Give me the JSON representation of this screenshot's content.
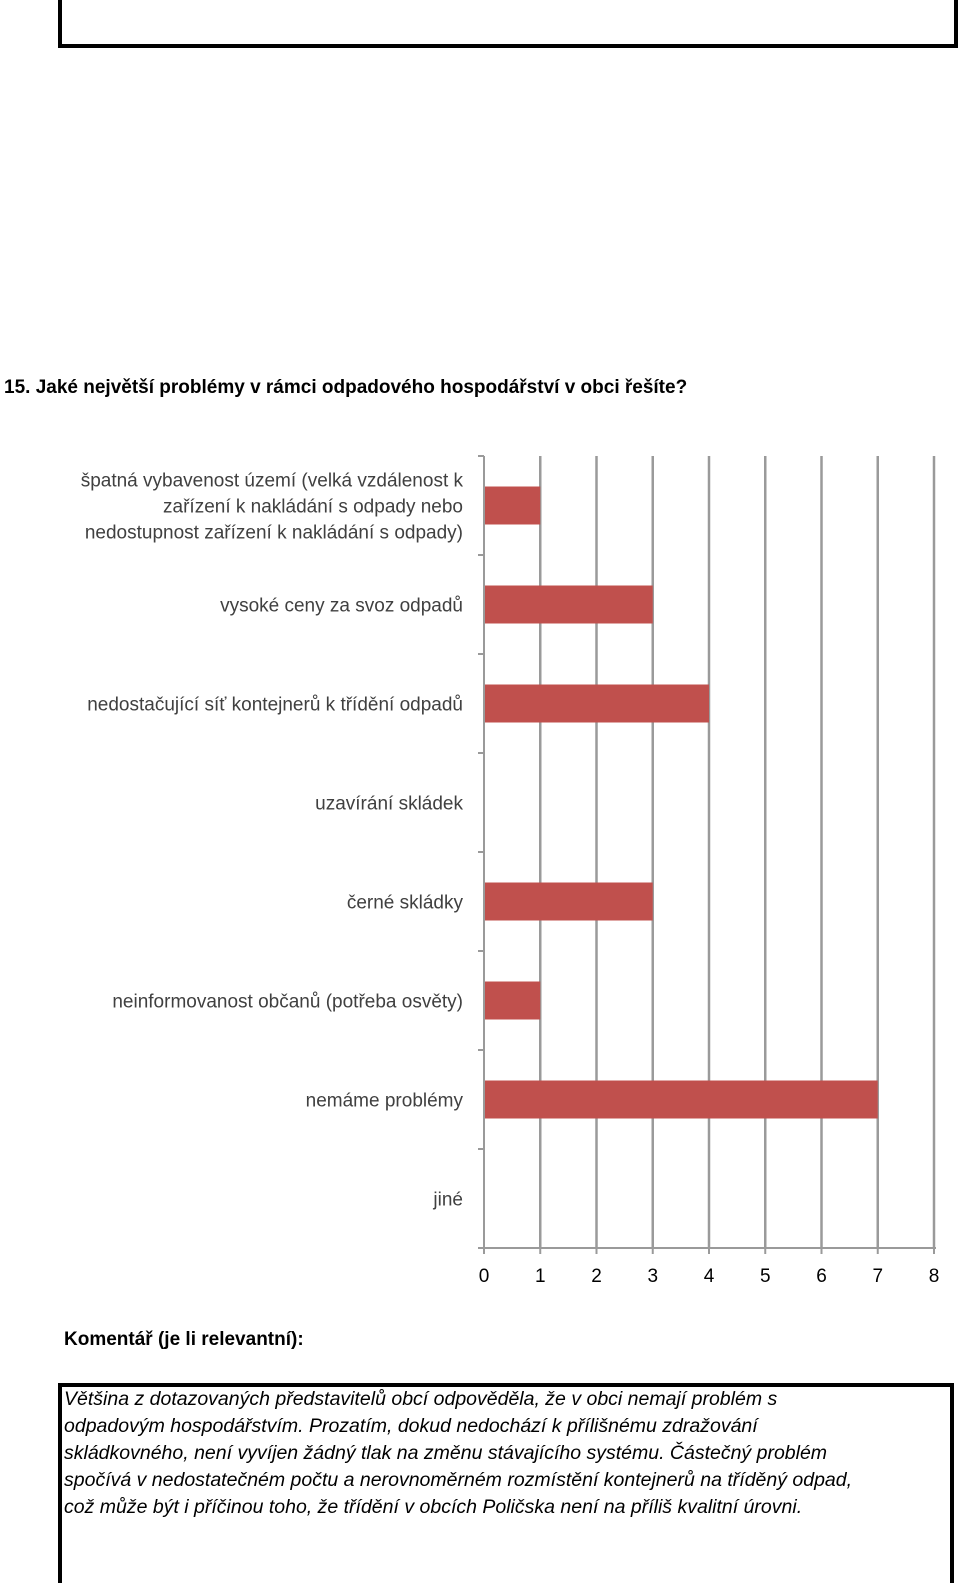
{
  "question": {
    "title": "15. Jaké největší problémy v rámci odpadového hospodářství v obci řešíte?"
  },
  "chart_data": {
    "type": "bar",
    "orientation": "horizontal",
    "categories": [
      [
        "špatná vybavenost území (velká vzdálenost k",
        "zařízení k nakládání s odpady nebo",
        "nedostupnost zařízení k nakládání s odpady)"
      ],
      [
        "vysoké ceny za svoz odpadů"
      ],
      [
        "nedostačující síť kontejnerů k třídění odpadů"
      ],
      [
        "uzavírání skládek"
      ],
      [
        "černé skládky"
      ],
      [
        "neinformovanost občanů (potřeba osvěty)"
      ],
      [
        "nemáme problémy"
      ],
      [
        "jiné"
      ]
    ],
    "values": [
      1,
      3,
      4,
      0,
      3,
      1,
      7,
      0
    ],
    "xlim": [
      0,
      8
    ],
    "x_ticks": [
      "0",
      "1",
      "2",
      "3",
      "4",
      "5",
      "6",
      "7",
      "8"
    ],
    "grid": "vertical",
    "bar_color": "#c0504d"
  },
  "comment": {
    "label": "Komentář (je li relevantní):",
    "lines": [
      "Většina z dotazovaných představitelů obcí odpověděla, že v obci nemají problém s",
      "odpadovým hospodářstvím. Prozatím, dokud nedochází k přílišnému zdražování",
      "skládkovného, není vyvíjen žádný tlak na změnu stávajícího systému. Částečný problém",
      "spočívá v nedostatečném počtu a nerovnoměrném rozmístění kontejnerů na tříděný odpad,",
      "což může být i příčinou toho, že třídění v obcích Poličska není na příliš kvalitní úrovni."
    ]
  }
}
